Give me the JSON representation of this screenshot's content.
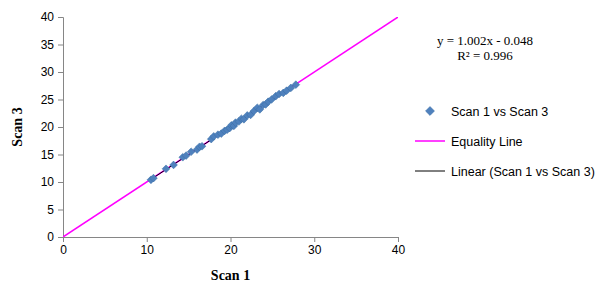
{
  "chart_data": {
    "type": "scatter",
    "xlabel": "Scan 1",
    "ylabel": "Scan 3",
    "xlim": [
      0,
      40
    ],
    "ylim": [
      0,
      40
    ],
    "xticks": [
      0,
      10,
      20,
      30,
      40
    ],
    "yticks": [
      0,
      5,
      10,
      15,
      20,
      25,
      30,
      35,
      40
    ],
    "grid": false,
    "legend": "right",
    "annotations": [
      "y = 1.002x - 0.048",
      "R² = 0.996"
    ],
    "series": [
      {
        "name": "Scan 1 vs Scan 3",
        "type": "scatter",
        "color": "#4f81bd",
        "marker": "diamond",
        "x": [
          10.5,
          10.8,
          12.3,
          13.2,
          14.3,
          14.7,
          15.3,
          16.0,
          16.3,
          16.6,
          17.7,
          18.0,
          18.5,
          18.9,
          19.3,
          19.6,
          19.9,
          20.1,
          20.4,
          20.6,
          21.0,
          21.3,
          21.6,
          22.0,
          22.4,
          22.8,
          23.2,
          23.5,
          23.9,
          24.2,
          24.5,
          24.9,
          25.4,
          25.8,
          26.3,
          26.7,
          27.2,
          27.8
        ],
        "values": [
          10.4,
          10.7,
          12.4,
          13.1,
          14.5,
          14.8,
          15.5,
          15.9,
          16.4,
          16.5,
          17.8,
          18.3,
          18.6,
          18.8,
          19.3,
          19.5,
          19.8,
          20.3,
          20.2,
          20.8,
          21.0,
          21.5,
          21.4,
          22.1,
          22.2,
          22.9,
          23.5,
          23.2,
          24.0,
          24.1,
          24.6,
          25.0,
          25.6,
          26.0,
          26.2,
          26.6,
          27.1,
          27.7
        ]
      },
      {
        "name": "Equality Line",
        "type": "line",
        "color": "#ff00ff",
        "line_style": "solid",
        "x": [
          0,
          40
        ],
        "values": [
          0,
          40
        ]
      },
      {
        "name": "Linear (Scan 1 vs Scan 3)",
        "type": "line",
        "color": "#000000",
        "line_style": "solid",
        "x": [
          10.5,
          27.8
        ],
        "values": [
          10.473,
          27.808
        ]
      }
    ]
  }
}
